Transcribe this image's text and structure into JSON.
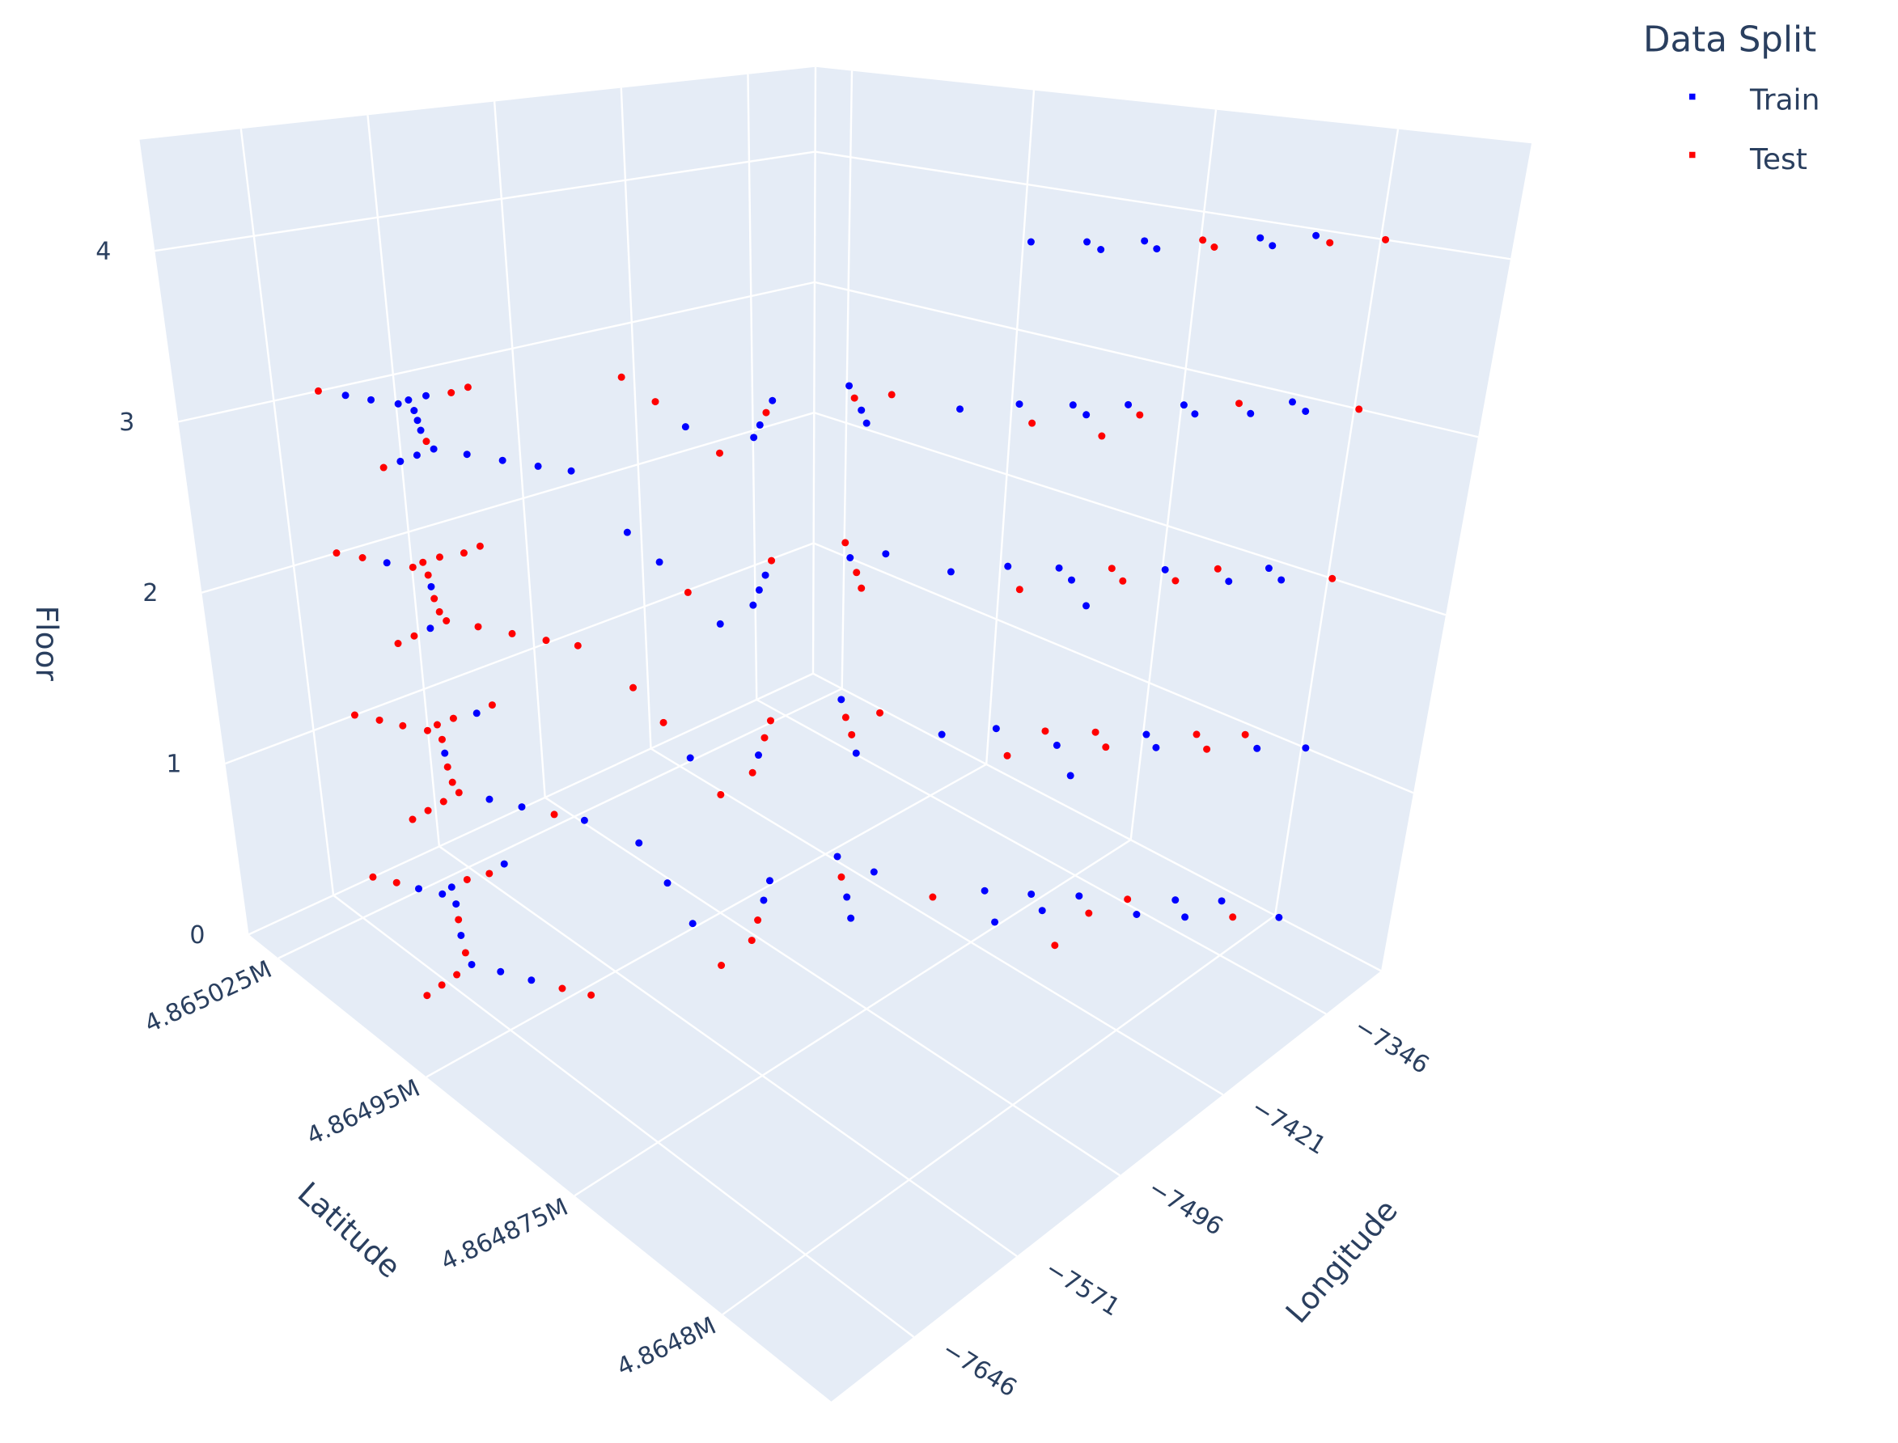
{
  "chart_data": {
    "type": "scatter3d",
    "legend": {
      "title": "Data Split",
      "placement": "top-right"
    },
    "grid": true,
    "pane_color": "#e5ecf6",
    "grid_color": "#ffffff",
    "text_color": "#2a3f5f",
    "axes": {
      "x": {
        "title": "Longitude",
        "range": [
          -7706,
          -7306
        ],
        "tickvals": [
          -7646,
          -7571,
          -7496,
          -7421,
          -7346
        ],
        "ticktext": [
          "−7646",
          "−7571",
          "−7496",
          "−7421",
          "−7346"
        ]
      },
      "y": {
        "title": "Latitude",
        "range": [
          4864745,
          4865040
        ],
        "tickvals": [
          4864800,
          4864875,
          4864950,
          4865025
        ],
        "ticktext": [
          "4.8648M",
          "4.864875M",
          "4.86495M",
          "4.865025M"
        ]
      },
      "z": {
        "title": "Floor",
        "range": [
          0,
          4.65
        ],
        "tickvals": [
          0,
          1,
          2,
          3,
          4
        ],
        "ticktext": [
          "0",
          "1",
          "2",
          "3",
          "4"
        ]
      }
    },
    "series": [
      {
        "name": "Train",
        "color": "#0000ff",
        "points": [
          [
            -7605,
            4865026,
            0
          ],
          [
            -7598,
            4865019,
            0
          ],
          [
            -7590,
            4865020,
            0
          ],
          [
            -7554,
            4865019,
            0
          ],
          [
            -7598,
            4865012,
            0
          ],
          [
            -7614,
            4864998,
            0
          ],
          [
            -7626,
            4864984,
            0
          ],
          [
            -7618,
            4864975,
            0
          ],
          [
            -7610,
            4864965,
            0
          ],
          [
            -7486,
            4864999,
            0
          ],
          [
            -7499,
            4864975,
            0
          ],
          [
            -7513,
            4864952,
            0
          ],
          [
            -7472,
            4864945,
            0
          ],
          [
            -7458,
            4864952,
            0
          ],
          [
            -7450,
            4864916,
            0
          ],
          [
            -7439,
            4864926,
            0
          ],
          [
            -7418,
            4864946,
            0
          ],
          [
            -7414,
            4864930,
            0
          ],
          [
            -7401,
            4864877,
            0
          ],
          [
            -7386,
            4864893,
            0
          ],
          [
            -7372,
            4864879,
            0
          ],
          [
            -7357,
            4864865,
            0
          ],
          [
            -7328,
            4864836,
            0
          ],
          [
            -7314,
            4864822,
            0
          ],
          [
            -7378,
            4864869,
            0
          ],
          [
            -7349,
            4864841,
            0
          ],
          [
            -7335,
            4864826,
            0
          ],
          [
            -7306,
            4864798,
            0
          ],
          [
            -7566,
            4865018,
            1
          ],
          [
            -7606,
            4865005,
            1
          ],
          [
            -7618,
            4864975,
            1
          ],
          [
            -7610,
            4864965,
            1
          ],
          [
            -7594,
            4864946,
            1
          ],
          [
            -7513,
            4864952,
            1
          ],
          [
            -7486,
            4864938,
            1
          ],
          [
            -7450,
            4864916,
            1
          ],
          [
            -7418,
            4864946,
            1
          ],
          [
            -7408,
            4864904,
            1
          ],
          [
            -7394,
            4864851,
            1
          ],
          [
            -7386,
            4864893,
            1
          ],
          [
            -7343,
            4864850,
            1
          ],
          [
            -7378,
            4864869,
            1
          ],
          [
            -7349,
            4864841,
            1
          ],
          [
            -7320,
            4864812,
            1
          ],
          [
            -7306,
            4864798,
            1
          ],
          [
            -7605,
            4865026,
            2
          ],
          [
            -7606,
            4865005,
            2
          ],
          [
            -7638,
            4864983,
            2
          ],
          [
            -7486,
            4864999,
            2
          ],
          [
            -7499,
            4864975,
            2
          ],
          [
            -7526,
            4864928,
            2
          ],
          [
            -7500,
            4864931,
            2
          ],
          [
            -7486,
            4864938,
            2
          ],
          [
            -7472,
            4864945,
            2
          ],
          [
            -7429,
            4864936,
            2
          ],
          [
            -7414,
            4864930,
            2
          ],
          [
            -7408,
            4864904,
            2
          ],
          [
            -7394,
            4864851,
            2
          ],
          [
            -7386,
            4864893,
            2
          ],
          [
            -7372,
            4864879,
            2
          ],
          [
            -7343,
            4864850,
            2
          ],
          [
            -7314,
            4864822,
            2
          ],
          [
            -7378,
            4864869,
            2
          ],
          [
            -7335,
            4864826,
            2
          ],
          [
            -7320,
            4864812,
            2
          ],
          [
            -7611,
            4865033,
            3
          ],
          [
            -7605,
            4865026,
            3
          ],
          [
            -7598,
            4865019,
            3
          ],
          [
            -7590,
            4865020,
            3
          ],
          [
            -7579,
            4865020,
            3
          ],
          [
            -7598,
            4865012,
            3
          ],
          [
            -7606,
            4865005,
            3
          ],
          [
            -7614,
            4864998,
            3
          ],
          [
            -7650,
            4864982,
            3
          ],
          [
            -7638,
            4864983,
            3
          ],
          [
            -7626,
            4864984,
            3
          ],
          [
            -7618,
            4864975,
            3
          ],
          [
            -7610,
            4864965,
            3
          ],
          [
            -7602,
            4864955,
            3
          ],
          [
            -7594,
            4864946,
            3
          ],
          [
            -7513,
            4864952,
            3
          ],
          [
            -7500,
            4864931,
            3
          ],
          [
            -7486,
            4864938,
            3
          ],
          [
            -7458,
            4864952,
            3
          ],
          [
            -7450,
            4864916,
            3
          ],
          [
            -7439,
            4864926,
            3
          ],
          [
            -7418,
            4864946,
            3
          ],
          [
            -7408,
            4864904,
            3
          ],
          [
            -7386,
            4864893,
            3
          ],
          [
            -7372,
            4864879,
            3
          ],
          [
            -7357,
            4864865,
            3
          ],
          [
            -7343,
            4864850,
            3
          ],
          [
            -7314,
            4864822,
            3
          ],
          [
            -7378,
            4864869,
            3
          ],
          [
            -7349,
            4864841,
            3
          ],
          [
            -7335,
            4864826,
            3
          ],
          [
            -7320,
            4864812,
            3
          ],
          [
            -7386,
            4864893,
            4
          ],
          [
            -7372,
            4864879,
            4
          ],
          [
            -7357,
            4864865,
            4
          ],
          [
            -7328,
            4864836,
            4
          ],
          [
            -7314,
            4864822,
            4
          ],
          [
            -7378,
            4864869,
            4
          ],
          [
            -7364,
            4864855,
            4
          ],
          [
            -7335,
            4864826,
            4
          ]
        ]
      },
      {
        "name": "Test",
        "color": "#ff0000",
        "points": [
          [
            -7618,
            4865040,
            0
          ],
          [
            -7611,
            4865033,
            0
          ],
          [
            -7579,
            4865020,
            0
          ],
          [
            -7566,
            4865018,
            0
          ],
          [
            -7606,
            4865005,
            0
          ],
          [
            -7622,
            4864990,
            0
          ],
          [
            -7662,
            4864981,
            0
          ],
          [
            -7650,
            4864982,
            0
          ],
          [
            -7638,
            4864983,
            0
          ],
          [
            -7602,
            4864955,
            0
          ],
          [
            -7594,
            4864946,
            0
          ],
          [
            -7526,
            4864928,
            0
          ],
          [
            -7500,
            4864931,
            0
          ],
          [
            -7486,
            4864938,
            0
          ],
          [
            -7429,
            4864936,
            0
          ],
          [
            -7408,
            4864904,
            0
          ],
          [
            -7394,
            4864851,
            0
          ],
          [
            -7343,
            4864850,
            0
          ],
          [
            -7364,
            4864855,
            0
          ],
          [
            -7320,
            4864812,
            0
          ],
          [
            -7618,
            4865040,
            1
          ],
          [
            -7611,
            4865033,
            1
          ],
          [
            -7605,
            4865026,
            1
          ],
          [
            -7598,
            4865019,
            1
          ],
          [
            -7590,
            4865020,
            1
          ],
          [
            -7579,
            4865020,
            1
          ],
          [
            -7554,
            4865019,
            1
          ],
          [
            -7598,
            4865012,
            1
          ],
          [
            -7614,
            4864998,
            1
          ],
          [
            -7622,
            4864990,
            1
          ],
          [
            -7662,
            4864981,
            1
          ],
          [
            -7650,
            4864982,
            1
          ],
          [
            -7638,
            4864983,
            1
          ],
          [
            -7626,
            4864984,
            1
          ],
          [
            -7602,
            4864955,
            1
          ],
          [
            -7486,
            4864999,
            1
          ],
          [
            -7499,
            4864975,
            1
          ],
          [
            -7526,
            4864928,
            1
          ],
          [
            -7500,
            4864931,
            1
          ],
          [
            -7472,
            4864945,
            1
          ],
          [
            -7458,
            4864952,
            1
          ],
          [
            -7439,
            4864926,
            1
          ],
          [
            -7429,
            4864936,
            1
          ],
          [
            -7414,
            4864930,
            1
          ],
          [
            -7401,
            4864877,
            1
          ],
          [
            -7372,
            4864879,
            1
          ],
          [
            -7357,
            4864865,
            1
          ],
          [
            -7328,
            4864836,
            1
          ],
          [
            -7314,
            4864822,
            1
          ],
          [
            -7364,
            4864855,
            1
          ],
          [
            -7335,
            4864826,
            1
          ],
          [
            -7618,
            4865040,
            2
          ],
          [
            -7611,
            4865033,
            2
          ],
          [
            -7598,
            4865019,
            2
          ],
          [
            -7590,
            4865020,
            2
          ],
          [
            -7579,
            4865020,
            2
          ],
          [
            -7566,
            4865018,
            2
          ],
          [
            -7554,
            4865019,
            2
          ],
          [
            -7598,
            4865012,
            2
          ],
          [
            -7614,
            4864998,
            2
          ],
          [
            -7622,
            4864990,
            2
          ],
          [
            -7662,
            4864981,
            2
          ],
          [
            -7650,
            4864982,
            2
          ],
          [
            -7626,
            4864984,
            2
          ],
          [
            -7618,
            4864975,
            2
          ],
          [
            -7610,
            4864965,
            2
          ],
          [
            -7602,
            4864955,
            2
          ],
          [
            -7594,
            4864946,
            2
          ],
          [
            -7513,
            4864952,
            2
          ],
          [
            -7458,
            4864952,
            2
          ],
          [
            -7450,
            4864916,
            2
          ],
          [
            -7439,
            4864926,
            2
          ],
          [
            -7418,
            4864946,
            2
          ],
          [
            -7401,
            4864877,
            2
          ],
          [
            -7357,
            4864865,
            2
          ],
          [
            -7328,
            4864836,
            2
          ],
          [
            -7364,
            4864855,
            2
          ],
          [
            -7349,
            4864841,
            2
          ],
          [
            -7306,
            4864798,
            2
          ],
          [
            -7618,
            4865040,
            3
          ],
          [
            -7566,
            4865018,
            3
          ],
          [
            -7554,
            4865019,
            3
          ],
          [
            -7622,
            4864990,
            3
          ],
          [
            -7662,
            4864981,
            3
          ],
          [
            -7486,
            4864999,
            3
          ],
          [
            -7499,
            4864975,
            3
          ],
          [
            -7526,
            4864928,
            3
          ],
          [
            -7472,
            4864945,
            3
          ],
          [
            -7429,
            4864936,
            3
          ],
          [
            -7414,
            4864930,
            3
          ],
          [
            -7401,
            4864877,
            3
          ],
          [
            -7394,
            4864851,
            3
          ],
          [
            -7328,
            4864836,
            3
          ],
          [
            -7364,
            4864855,
            3
          ],
          [
            -7306,
            4864798,
            3
          ],
          [
            -7343,
            4864850,
            4
          ],
          [
            -7349,
            4864841,
            4
          ],
          [
            -7320,
            4864812,
            4
          ],
          [
            -7306,
            4864798,
            4
          ]
        ]
      }
    ]
  }
}
